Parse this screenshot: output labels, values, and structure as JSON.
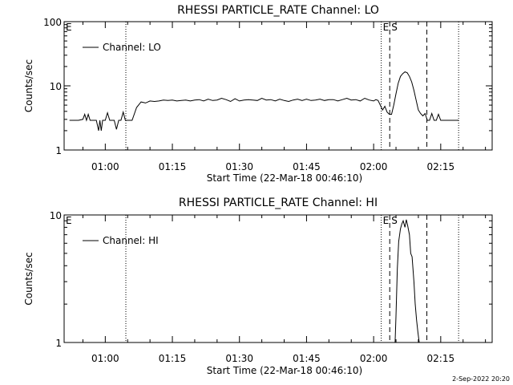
{
  "footer_date": "2-Sep-2022 20:20",
  "chart_data": [
    {
      "type": "line",
      "title": "RHESSI PARTICLE_RATE Channel: LO",
      "xlabel": "Start Time (22-Mar-18 00:46:10)",
      "ylabel": "Counts/sec",
      "yscale": "log",
      "ylim": [
        1,
        100
      ],
      "y_ticks": [
        "1",
        "10",
        "100"
      ],
      "xlim_minutes": [
        -9.2,
        86.5
      ],
      "x_ticks": [
        "01:00",
        "01:15",
        "01:30",
        "01:45",
        "02:00",
        "02:15"
      ],
      "x_tick_minutes": [
        0,
        15,
        30,
        45,
        60,
        75
      ],
      "legend": "Channel: LO",
      "legend_position": "top-left",
      "markers": [
        {
          "label": "E",
          "minute": -9.2,
          "style": "none"
        },
        {
          "label": "",
          "minute": 4.6,
          "style": "dotted"
        },
        {
          "label": "",
          "minute": 61.7,
          "style": "dotted"
        },
        {
          "label": "E",
          "minute": 61.7,
          "style": "none"
        },
        {
          "label": "S",
          "minute": 63.6,
          "style": "dashed"
        },
        {
          "label": "",
          "minute": 71.9,
          "style": "dashed"
        },
        {
          "label": "",
          "minute": 79.0,
          "style": "dotted"
        }
      ],
      "series": [
        {
          "name": "Channel: LO",
          "x": [
            -8.0,
            -6.0,
            -5.0,
            -4.6,
            -4.2,
            -3.8,
            -3.4,
            -3.0,
            -2.0,
            -1.5,
            -1.2,
            -0.9,
            -0.6,
            -0.3,
            0.0,
            0.5,
            1.0,
            2.0,
            2.5,
            3.0,
            3.5,
            4.0,
            4.5,
            5.0,
            6.0,
            7.0,
            8.0,
            9.0,
            10.0,
            11.0,
            12.0,
            13.0,
            14.0,
            15.0,
            16.0,
            17.0,
            18.0,
            19.0,
            20.0,
            21.0,
            22.0,
            23.0,
            24.0,
            25.0,
            26.0,
            27.0,
            28.0,
            29.0,
            30.0,
            31.0,
            32.0,
            33.0,
            34.0,
            35.0,
            36.0,
            37.0,
            38.0,
            39.0,
            40.0,
            41.0,
            42.0,
            43.0,
            44.0,
            45.0,
            46.0,
            47.0,
            48.0,
            49.0,
            50.0,
            51.0,
            52.0,
            53.0,
            54.0,
            55.0,
            56.0,
            57.0,
            58.0,
            59.0,
            60.0,
            60.5,
            61.0,
            62.0,
            62.5,
            63.0,
            63.5,
            64.0,
            64.5,
            65.0,
            65.5,
            66.0,
            66.5,
            67.0,
            67.5,
            68.0,
            68.5,
            69.0,
            69.5,
            70.0,
            70.5,
            71.0,
            71.5,
            72.0,
            72.5,
            73.0,
            73.5,
            74.0,
            74.5,
            75.0,
            76.0,
            77.0,
            79.0
          ],
          "values": [
            2.9,
            2.9,
            3.0,
            3.6,
            2.9,
            3.6,
            2.9,
            2.9,
            2.9,
            2.0,
            2.9,
            2.0,
            2.9,
            2.9,
            2.9,
            3.8,
            2.9,
            2.9,
            2.1,
            2.9,
            2.9,
            3.9,
            2.9,
            2.9,
            2.9,
            4.6,
            5.6,
            5.4,
            5.8,
            5.7,
            5.8,
            6.0,
            5.9,
            6.0,
            5.8,
            5.9,
            6.0,
            5.8,
            6.0,
            6.1,
            5.8,
            6.2,
            5.9,
            6.0,
            6.4,
            6.1,
            5.7,
            6.3,
            5.8,
            6.0,
            6.1,
            6.0,
            5.9,
            6.4,
            6.0,
            6.1,
            5.8,
            6.2,
            5.9,
            5.7,
            6.0,
            6.2,
            5.9,
            6.2,
            5.9,
            6.0,
            6.2,
            5.9,
            6.1,
            6.1,
            5.8,
            6.1,
            6.4,
            6.0,
            6.1,
            5.8,
            6.4,
            6.0,
            5.8,
            6.1,
            5.9,
            4.2,
            4.8,
            3.9,
            3.6,
            3.6,
            5.0,
            7.5,
            11.0,
            14.0,
            15.5,
            16.5,
            16.0,
            14.0,
            11.5,
            8.5,
            6.0,
            4.2,
            3.7,
            3.4,
            3.7,
            2.9,
            2.9,
            3.7,
            2.9,
            2.9,
            3.6,
            2.9,
            2.9,
            2.9,
            2.9
          ]
        }
      ]
    },
    {
      "type": "line",
      "title": "RHESSI PARTICLE_RATE Channel: HI",
      "xlabel": "Start Time (22-Mar-18 00:46:10)",
      "ylabel": "Counts/sec",
      "yscale": "log",
      "ylim": [
        1,
        10
      ],
      "y_ticks": [
        "1",
        "10"
      ],
      "xlim_minutes": [
        -9.2,
        86.5
      ],
      "x_ticks": [
        "01:00",
        "01:15",
        "01:30",
        "01:45",
        "02:00",
        "02:15"
      ],
      "x_tick_minutes": [
        0,
        15,
        30,
        45,
        60,
        75
      ],
      "legend": "Channel: HI",
      "legend_position": "top-left",
      "markers": [
        {
          "label": "E",
          "minute": -9.2,
          "style": "none"
        },
        {
          "label": "",
          "minute": 4.6,
          "style": "dotted"
        },
        {
          "label": "",
          "minute": 61.7,
          "style": "dotted"
        },
        {
          "label": "E",
          "minute": 61.7,
          "style": "none"
        },
        {
          "label": "S",
          "minute": 63.6,
          "style": "dashed"
        },
        {
          "label": "",
          "minute": 71.9,
          "style": "dashed"
        },
        {
          "label": "",
          "minute": 79.0,
          "style": "dotted"
        }
      ],
      "series": [
        {
          "name": "Channel: HI",
          "x": [
            64.8,
            65.0,
            65.3,
            65.6,
            66.0,
            66.3,
            66.6,
            67.0,
            67.3,
            67.6,
            68.0,
            68.3,
            68.6,
            69.0,
            69.3,
            69.6,
            69.9,
            70.2
          ],
          "values": [
            1.0,
            1.6,
            3.8,
            6.2,
            7.8,
            8.5,
            9.0,
            8.0,
            9.2,
            8.3,
            7.0,
            5.0,
            4.7,
            3.0,
            2.0,
            1.5,
            1.2,
            1.0
          ]
        }
      ]
    }
  ]
}
